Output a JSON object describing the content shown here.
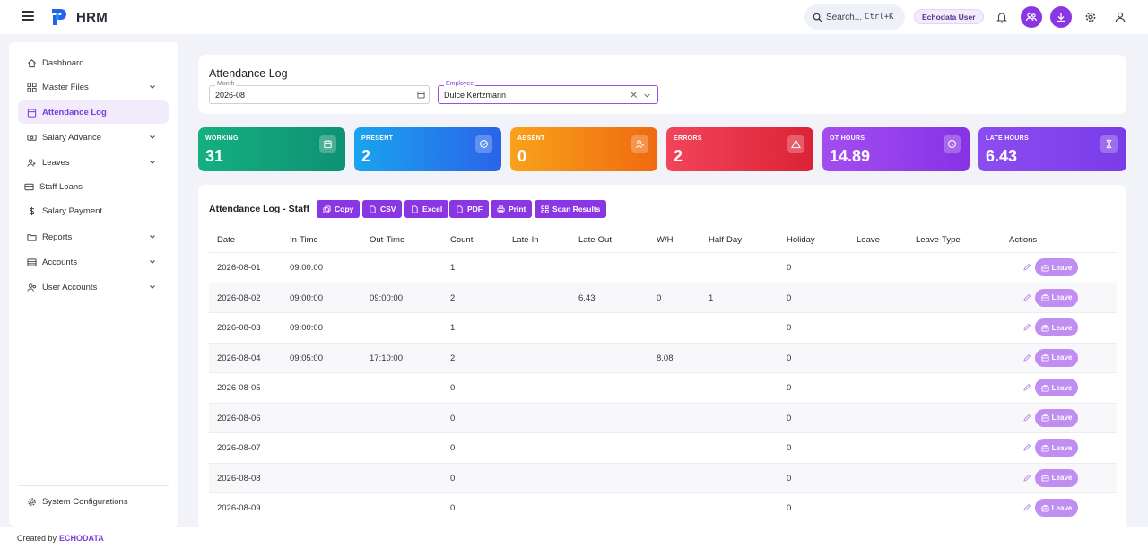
{
  "app": {
    "name": "HRM",
    "user_badge": "Echodata User"
  },
  "search": {
    "label": "Search...",
    "shortcut": "Ctrl+K"
  },
  "colors": {
    "accent": "#8b36e3",
    "leave_button": "#c08ef0"
  },
  "sidebar": {
    "items": [
      {
        "label": "Dashboard",
        "icon": "home-icon",
        "chevron": false,
        "active": false
      },
      {
        "label": "Master Files",
        "icon": "grid-icon",
        "chevron": true,
        "active": false
      },
      {
        "label": "Attendance Log",
        "icon": "calendar-icon",
        "chevron": false,
        "active": true
      },
      {
        "label": "Salary Advance",
        "icon": "money-icon",
        "chevron": true,
        "active": false
      },
      {
        "label": "Leaves",
        "icon": "users-icon",
        "chevron": true,
        "active": false
      },
      {
        "label": "Staff Loans",
        "icon": "card-icon",
        "chevron": false,
        "active": false
      },
      {
        "label": "Salary Payment",
        "icon": "dollar-icon",
        "chevron": false,
        "active": false
      },
      {
        "label": "Reports",
        "icon": "folder-icon",
        "chevron": true,
        "active": false
      },
      {
        "label": "Accounts",
        "icon": "list-icon",
        "chevron": true,
        "active": false
      },
      {
        "label": "User Accounts",
        "icon": "user-group-icon",
        "chevron": true,
        "active": false
      }
    ],
    "bottom_item": {
      "label": "System Configurations",
      "icon": "gear-icon"
    }
  },
  "filters": {
    "title": "Attendance Log",
    "month": {
      "label": "Month",
      "value": "2026-08"
    },
    "employee": {
      "label": "Employee",
      "value": "Dulce Kertzmann"
    }
  },
  "stats": [
    {
      "label": "WORKING",
      "value": "31",
      "icon": "calendar-icon",
      "color_from": "#14b080",
      "color_to": "#0e9174"
    },
    {
      "label": "PRESENT",
      "value": "2",
      "icon": "check-circle-icon",
      "color_from": "#1aa4ee",
      "color_to": "#2b63e8"
    },
    {
      "label": "ABSENT",
      "value": "0",
      "icon": "user-x-icon",
      "color_from": "#f8a21b",
      "color_to": "#ef6a10"
    },
    {
      "label": "ERRORS",
      "value": "2",
      "icon": "warning-icon",
      "color_from": "#f2445a",
      "color_to": "#dc2336"
    },
    {
      "label": "OT HOURS",
      "value": "14.89",
      "icon": "clock-icon",
      "color_from": "#a34df0",
      "color_to": "#8733e6"
    },
    {
      "label": "LATE HOURS",
      "value": "6.43",
      "icon": "hourglass-icon",
      "color_from": "#8b4df0",
      "color_to": "#7a3ce8"
    }
  ],
  "table": {
    "title": "Attendance Log - Staff",
    "buttons": [
      {
        "label": "Copy",
        "icon": "copy-icon"
      },
      {
        "label": "CSV",
        "icon": "file-icon"
      },
      {
        "label": "Excel",
        "icon": "file-icon"
      },
      {
        "label": "PDF",
        "icon": "file-icon"
      },
      {
        "label": "Print",
        "icon": "print-icon"
      },
      {
        "label": "Scan Results",
        "icon": "scan-icon"
      }
    ],
    "columns": [
      "Date",
      "In-Time",
      "Out-Time",
      "Count",
      "Late-In",
      "Late-Out",
      "W/H",
      "Half-Day",
      "Holiday",
      "Leave",
      "Leave-Type",
      "Actions"
    ],
    "leave_label": "Leave",
    "rows": [
      {
        "date": "2026-08-01",
        "in": "09:00:00",
        "out": "",
        "count": "1",
        "late_in": "",
        "late_out": "",
        "wh": "",
        "half_day": "",
        "holiday": "0",
        "leave": "",
        "leave_type": ""
      },
      {
        "date": "2026-08-02",
        "in": "09:00:00",
        "out": "09:00:00",
        "count": "2",
        "late_in": "",
        "late_out": "6.43",
        "wh": "0",
        "half_day": "1",
        "holiday": "0",
        "leave": "",
        "leave_type": ""
      },
      {
        "date": "2026-08-03",
        "in": "09:00:00",
        "out": "",
        "count": "1",
        "late_in": "",
        "late_out": "",
        "wh": "",
        "half_day": "",
        "holiday": "0",
        "leave": "",
        "leave_type": ""
      },
      {
        "date": "2026-08-04",
        "in": "09:05:00",
        "out": "17:10:00",
        "count": "2",
        "late_in": "",
        "late_out": "",
        "wh": "8.08",
        "half_day": "",
        "holiday": "0",
        "leave": "",
        "leave_type": ""
      },
      {
        "date": "2026-08-05",
        "in": "",
        "out": "",
        "count": "0",
        "late_in": "",
        "late_out": "",
        "wh": "",
        "half_day": "",
        "holiday": "0",
        "leave": "",
        "leave_type": ""
      },
      {
        "date": "2026-08-06",
        "in": "",
        "out": "",
        "count": "0",
        "late_in": "",
        "late_out": "",
        "wh": "",
        "half_day": "",
        "holiday": "0",
        "leave": "",
        "leave_type": ""
      },
      {
        "date": "2026-08-07",
        "in": "",
        "out": "",
        "count": "0",
        "late_in": "",
        "late_out": "",
        "wh": "",
        "half_day": "",
        "holiday": "0",
        "leave": "",
        "leave_type": ""
      },
      {
        "date": "2026-08-08",
        "in": "",
        "out": "",
        "count": "0",
        "late_in": "",
        "late_out": "",
        "wh": "",
        "half_day": "",
        "holiday": "0",
        "leave": "",
        "leave_type": ""
      },
      {
        "date": "2026-08-09",
        "in": "",
        "out": "",
        "count": "0",
        "late_in": "",
        "late_out": "",
        "wh": "",
        "half_day": "",
        "holiday": "0",
        "leave": "",
        "leave_type": ""
      }
    ]
  },
  "footer": {
    "text": "Created by",
    "brand": "ECHODATA"
  }
}
